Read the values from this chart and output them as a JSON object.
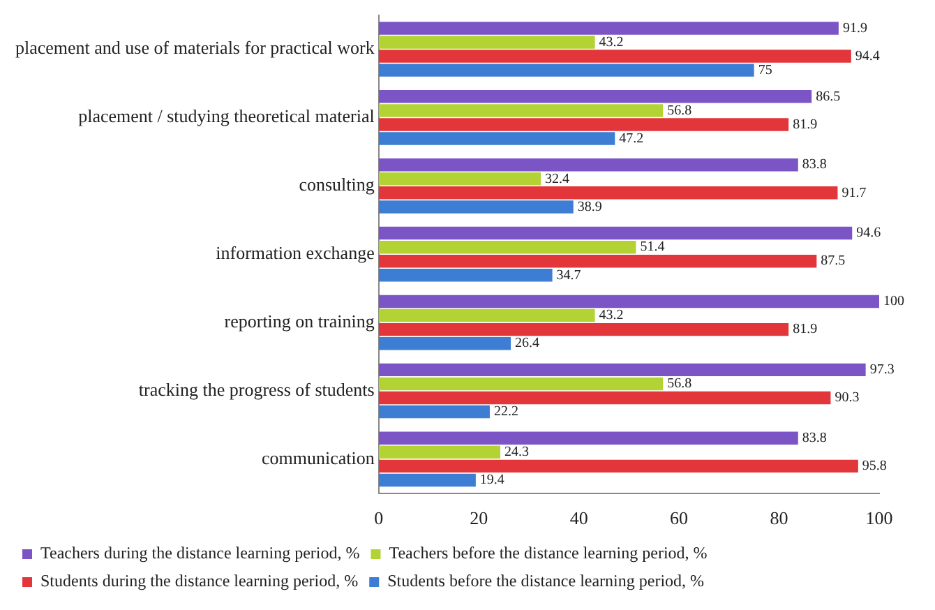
{
  "chart_data": {
    "type": "bar",
    "orientation": "horizontal",
    "categories": [
      "placement and use of materials for practical work",
      "placement / studying theoretical material",
      "consulting",
      "information exchange",
      "reporting on training",
      "tracking the progress of students",
      "communication"
    ],
    "series": [
      {
        "name": "Teachers during the distance learning period, %",
        "color": "#7b55c6",
        "values": [
          91.9,
          86.5,
          83.8,
          94.6,
          100,
          97.3,
          83.8
        ]
      },
      {
        "name": "Teachers before the distance learning period, %",
        "color": "#b3d335",
        "values": [
          43.2,
          56.8,
          32.4,
          51.4,
          43.2,
          56.8,
          24.3
        ]
      },
      {
        "name": "Students during the distance learning period, %",
        "color": "#e2363b",
        "values": [
          94.4,
          81.9,
          91.7,
          87.5,
          81.9,
          90.3,
          95.8
        ]
      },
      {
        "name": "Students before the distance learning period, %",
        "color": "#3d7ed4",
        "values": [
          75,
          47.2,
          38.9,
          34.7,
          26.4,
          22.2,
          19.4
        ]
      }
    ],
    "xlim": [
      0,
      100
    ],
    "xticks": [
      0,
      20,
      40,
      60,
      80,
      100
    ],
    "grid": false,
    "legend": "bottom",
    "data_labels": true
  }
}
